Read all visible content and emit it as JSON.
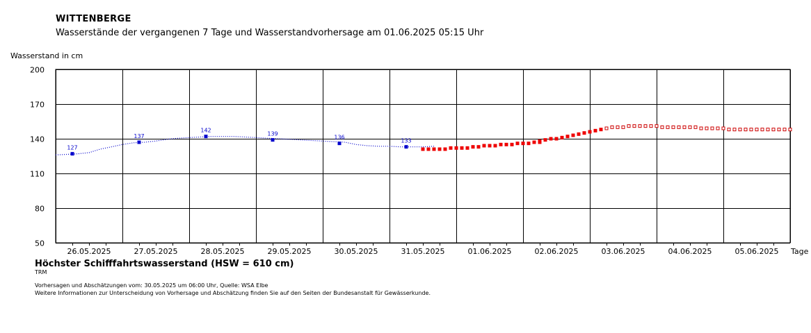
{
  "header": {
    "station": "WITTENBERGE",
    "subtitle": "Wasserstände der vergangenen 7 Tage und Wasserstandvorhersage am 01.06.2025 05:15 Uhr"
  },
  "footer": {
    "hsw": "Höchster Schifffahrtswasserstand (HSW = 610 cm)",
    "trm": "TRM",
    "note1": "Vorhersagen und Abschätzungen vom: 30.05.2025 um 06:00 Uhr, Quelle: WSA Elbe",
    "note2": "Weitere Informationen zur Unterscheidung von Vorhersage und Abschätzung finden Sie auf den Seiten der Bundesanstalt für Gewässerkunde."
  },
  "colors": {
    "observed": "#0000cc",
    "forecast": "#ee0000",
    "estimate": "#cc0000",
    "grid": "#000000"
  },
  "chart_data": {
    "type": "line",
    "title": "Wasserstände der vergangenen 7 Tage und Wasserstandvorhersage am 01.06.2025 05:15 Uhr",
    "ylabel": "Wasserstand in cm",
    "xlabel": "Tage",
    "ylim": [
      50,
      200
    ],
    "yticks": [
      50,
      80,
      110,
      140,
      170,
      200
    ],
    "xlim": [
      "2025-05-25T18:00",
      "2025-06-05T18:00"
    ],
    "day_labels": [
      "26.05.2025",
      "27.05.2025",
      "28.05.2025",
      "29.05.2025",
      "30.05.2025",
      "31.05.2025",
      "01.06.2025",
      "02.06.2025",
      "03.06.2025",
      "04.06.2025",
      "05.06.2025"
    ],
    "grid": true,
    "series": [
      {
        "name": "",
        "style": "observed",
        "x": [
          "2025-05-25T18:00",
          "2025-05-25T22:00",
          "2025-05-26T02:00",
          "2025-05-26T06:00",
          "2025-05-26T10:00",
          "2025-05-26T14:00",
          "2025-05-26T18:00",
          "2025-05-26T22:00",
          "2025-05-27T02:00",
          "2025-05-27T06:00",
          "2025-05-27T10:00",
          "2025-05-27T14:00",
          "2025-05-27T18:00",
          "2025-05-27T22:00",
          "2025-05-28T02:00",
          "2025-05-28T06:00",
          "2025-05-28T10:00",
          "2025-05-28T14:00",
          "2025-05-28T18:00",
          "2025-05-28T22:00",
          "2025-05-29T02:00",
          "2025-05-29T06:00",
          "2025-05-29T10:00",
          "2025-05-29T14:00",
          "2025-05-29T18:00",
          "2025-05-29T22:00",
          "2025-05-30T02:00",
          "2025-05-30T06:00",
          "2025-05-30T10:00",
          "2025-05-30T14:00",
          "2025-05-30T18:00",
          "2025-05-30T22:00",
          "2025-05-31T02:00",
          "2025-05-31T06:00",
          "2025-05-31T10:00"
        ],
        "values": [
          126,
          126.5,
          127,
          128,
          131,
          133,
          135,
          136.5,
          137,
          138,
          139.5,
          140.5,
          141,
          141.5,
          142,
          142,
          142,
          141.5,
          141,
          140.5,
          140,
          139.5,
          139,
          138.5,
          138,
          137.5,
          137,
          135,
          134,
          133.5,
          133.5,
          133,
          133,
          133,
          133.5
        ]
      },
      {
        "name": "",
        "style": "labels",
        "x": [
          "2025-05-26T00:00",
          "2025-05-27T00:00",
          "2025-05-28T00:00",
          "2025-05-29T00:00",
          "2025-05-30T00:00",
          "2025-05-31T00:00"
        ],
        "values": [
          127,
          137,
          142,
          139,
          136,
          133
        ]
      },
      {
        "name": "",
        "style": "forecast",
        "x": [
          "2025-05-31T06:00",
          "2025-05-31T08:00",
          "2025-05-31T10:00",
          "2025-05-31T12:00",
          "2025-05-31T14:00",
          "2025-05-31T16:00",
          "2025-05-31T18:00",
          "2025-05-31T20:00",
          "2025-05-31T22:00",
          "2025-06-01T00:00",
          "2025-06-01T02:00",
          "2025-06-01T04:00",
          "2025-06-01T06:00",
          "2025-06-01T08:00",
          "2025-06-01T10:00",
          "2025-06-01T12:00",
          "2025-06-01T14:00",
          "2025-06-01T16:00",
          "2025-06-01T18:00",
          "2025-06-01T20:00",
          "2025-06-01T22:00",
          "2025-06-02T00:00"
        ],
        "values": [
          131,
          131,
          131,
          131,
          131,
          132,
          132,
          132,
          132,
          133,
          133,
          134,
          134,
          134,
          135,
          135,
          135,
          136,
          136,
          136,
          137,
          137
        ]
      },
      {
        "name": "",
        "style": "estimate",
        "x": [
          "2025-06-02T00:00",
          "2025-06-02T02:00",
          "2025-06-02T04:00",
          "2025-06-02T06:00",
          "2025-06-02T08:00",
          "2025-06-02T10:00",
          "2025-06-02T12:00",
          "2025-06-02T14:00",
          "2025-06-02T16:00",
          "2025-06-02T18:00",
          "2025-06-02T20:00",
          "2025-06-02T22:00",
          "2025-06-03T00:00",
          "2025-06-03T02:00",
          "2025-06-03T04:00",
          "2025-06-03T06:00",
          "2025-06-03T08:00",
          "2025-06-03T10:00",
          "2025-06-03T12:00",
          "2025-06-03T14:00",
          "2025-06-03T16:00",
          "2025-06-03T18:00",
          "2025-06-03T20:00",
          "2025-06-03T22:00",
          "2025-06-04T00:00",
          "2025-06-04T02:00",
          "2025-06-04T04:00",
          "2025-06-04T06:00",
          "2025-06-04T08:00",
          "2025-06-04T10:00",
          "2025-06-04T12:00",
          "2025-06-04T14:00",
          "2025-06-04T16:00",
          "2025-06-04T18:00",
          "2025-06-04T20:00",
          "2025-06-04T22:00",
          "2025-06-05T00:00",
          "2025-06-05T02:00",
          "2025-06-05T04:00",
          "2025-06-05T06:00",
          "2025-06-05T08:00",
          "2025-06-05T10:00",
          "2025-06-05T12:00",
          "2025-06-05T14:00",
          "2025-06-05T16:00",
          "2025-06-05T18:00"
        ],
        "values": [
          138,
          139,
          140,
          140,
          141,
          142,
          143,
          144,
          145,
          146,
          147,
          148,
          149,
          150,
          150,
          150,
          151,
          151,
          151,
          151,
          151,
          151,
          150,
          150,
          150,
          150,
          150,
          150,
          150,
          149,
          149,
          149,
          149,
          149,
          148,
          148,
          148,
          148,
          148,
          148,
          148,
          148,
          148,
          148,
          148,
          148
        ]
      }
    ]
  }
}
